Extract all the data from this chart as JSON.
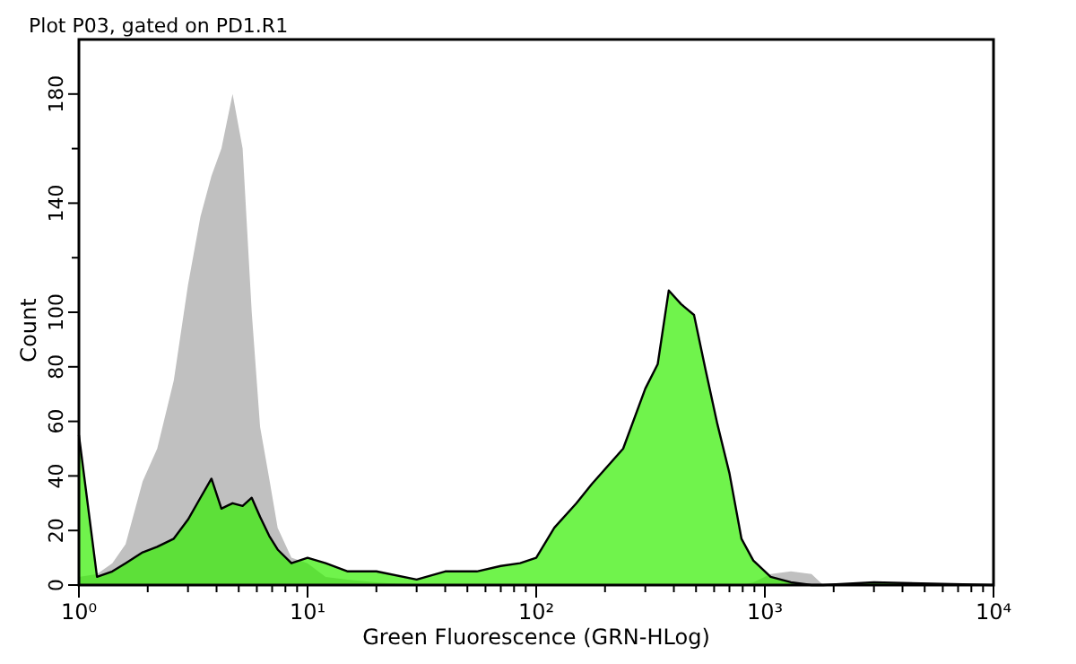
{
  "chart_data": {
    "type": "area",
    "title": "Plot P03, gated on PD1.R1",
    "xlabel": "Green Fluorescence (GRN-HLog)",
    "ylabel": "Count",
    "log": "x",
    "x": [
      1,
      1.2,
      1.4,
      1.6,
      1.9,
      2.2,
      2.6,
      3.0,
      3.4,
      3.8,
      4.2,
      4.7,
      5.2,
      5.7,
      6.2,
      6.8,
      7.4,
      8.5,
      10,
      12,
      15,
      20,
      30,
      40,
      55,
      70,
      85,
      100,
      120,
      150,
      175,
      240,
      300,
      340,
      380,
      430,
      490,
      550,
      620,
      700,
      790,
      890,
      1060,
      1300,
      1600,
      1800,
      3000,
      10000
    ],
    "series": [
      {
        "color": "#c0c0c0",
        "values": [
          3,
          4,
          8,
          15,
          38,
          50,
          75,
          110,
          135,
          150,
          160,
          180,
          160,
          100,
          58,
          39,
          21,
          10,
          8,
          3,
          2,
          1,
          0,
          0,
          0,
          0,
          0,
          0,
          0,
          0,
          0,
          0,
          0,
          0,
          0,
          0,
          0,
          0,
          0,
          0,
          0,
          1,
          4,
          5,
          4,
          0,
          0,
          0
        ]
      },
      {
        "color": "#33ee00",
        "values": [
          55,
          3,
          5,
          8,
          12,
          14,
          17,
          24,
          32,
          39,
          28,
          30,
          29,
          32,
          25,
          18,
          13,
          8,
          10,
          8,
          5,
          5,
          2,
          5,
          5,
          7,
          8,
          10,
          21,
          30,
          37,
          50,
          72,
          81,
          108,
          103,
          99,
          79,
          59,
          41,
          17,
          9,
          3,
          1,
          0,
          0,
          1,
          0
        ]
      }
    ],
    "xlim": [
      1,
      10000
    ],
    "xticks": [
      {
        "value": 1,
        "label": "10⁰"
      },
      {
        "value": 2,
        "label": null
      },
      {
        "value": 3,
        "label": null
      },
      {
        "value": 4,
        "label": null
      },
      {
        "value": 5,
        "label": null
      },
      {
        "value": 6,
        "label": null
      },
      {
        "value": 7,
        "label": null
      },
      {
        "value": 8,
        "label": null
      },
      {
        "value": 9,
        "label": null
      },
      {
        "value": 10,
        "label": "10¹"
      },
      {
        "value": 20,
        "label": null
      },
      {
        "value": 30,
        "label": null
      },
      {
        "value": 40,
        "label": null
      },
      {
        "value": 50,
        "label": null
      },
      {
        "value": 60,
        "label": null
      },
      {
        "value": 70,
        "label": null
      },
      {
        "value": 80,
        "label": null
      },
      {
        "value": 90,
        "label": null
      },
      {
        "value": 100,
        "label": "10²"
      },
      {
        "value": 200,
        "label": null
      },
      {
        "value": 300,
        "label": null
      },
      {
        "value": 400,
        "label": null
      },
      {
        "value": 500,
        "label": null
      },
      {
        "value": 600,
        "label": null
      },
      {
        "value": 700,
        "label": null
      },
      {
        "value": 800,
        "label": null
      },
      {
        "value": 900,
        "label": null
      },
      {
        "value": 1000,
        "label": "10³"
      },
      {
        "value": 2000,
        "label": null
      },
      {
        "value": 3000,
        "label": null
      },
      {
        "value": 4000,
        "label": null
      },
      {
        "value": 5000,
        "label": null
      },
      {
        "value": 6000,
        "label": null
      },
      {
        "value": 7000,
        "label": null
      },
      {
        "value": 8000,
        "label": null
      },
      {
        "value": 9000,
        "label": null
      },
      {
        "value": 10000,
        "label": "10⁴"
      }
    ],
    "ylim": [
      0,
      200
    ],
    "yticks": [
      0,
      20,
      40,
      60,
      80,
      100,
      {
        "value": 120,
        "label": null
      },
      140,
      {
        "value": 160,
        "label": null
      },
      180
    ],
    "grid": false
  }
}
